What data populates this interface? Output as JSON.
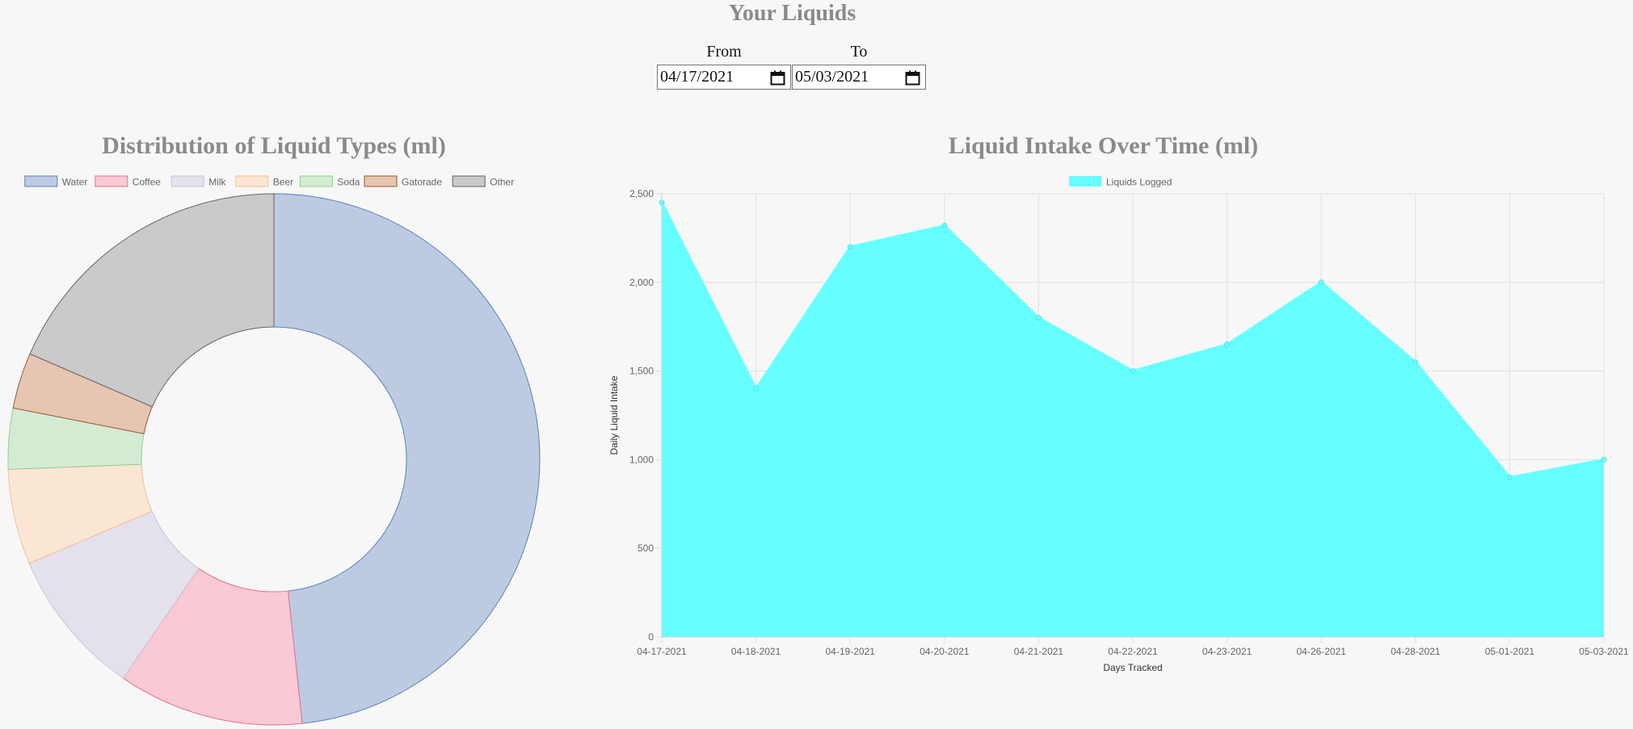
{
  "page": {
    "title": "Your Liquids",
    "from_label": "From",
    "to_label": "To",
    "from_value": "04/17/2021",
    "to_value": "05/03/2021"
  },
  "chart_data": [
    {
      "type": "pie",
      "title": "Distribution of Liquid Types (ml)",
      "legend_position": "top",
      "categories": [
        "Water",
        "Coffee",
        "Milk",
        "Beer",
        "Soda",
        "Gatorade",
        "Other"
      ],
      "values": [
        48.3,
        11.3,
        9.0,
        5.8,
        3.7,
        3.4,
        18.5
      ],
      "colors": [
        "#bdcbe2",
        "#f9c9d5",
        "#e5e1ec",
        "#fbe6d4",
        "#d4ebd3",
        "#e6c5b2",
        "#cacaca"
      ],
      "border_colors": [
        "#5b82b8",
        "#ea6f8d",
        "#c9c3db",
        "#f2c191",
        "#94cc91",
        "#9a5a2f",
        "#666666"
      ]
    },
    {
      "type": "area",
      "title": "Liquid Intake Over Time (ml)",
      "xlabel": "Days Tracked",
      "ylabel": "Daily Liquid Intake",
      "ylim": [
        0,
        2500
      ],
      "y_ticks": [
        "0",
        "500",
        "1,000",
        "1,500",
        "2,000",
        "2,500"
      ],
      "grid": true,
      "legend_position": "top",
      "categories": [
        "04-17-2021",
        "04-18-2021",
        "04-19-2021",
        "04-20-2021",
        "04-21-2021",
        "04-22-2021",
        "04-23-2021",
        "04-26-2021",
        "04-28-2021",
        "05-01-2021",
        "05-03-2021"
      ],
      "series": [
        {
          "name": "Liquids Logged",
          "values": [
            2450,
            1400,
            2200,
            2320,
            1800,
            1500,
            1650,
            2000,
            1550,
            900,
            1000
          ],
          "color": "#66ffff"
        }
      ]
    }
  ]
}
